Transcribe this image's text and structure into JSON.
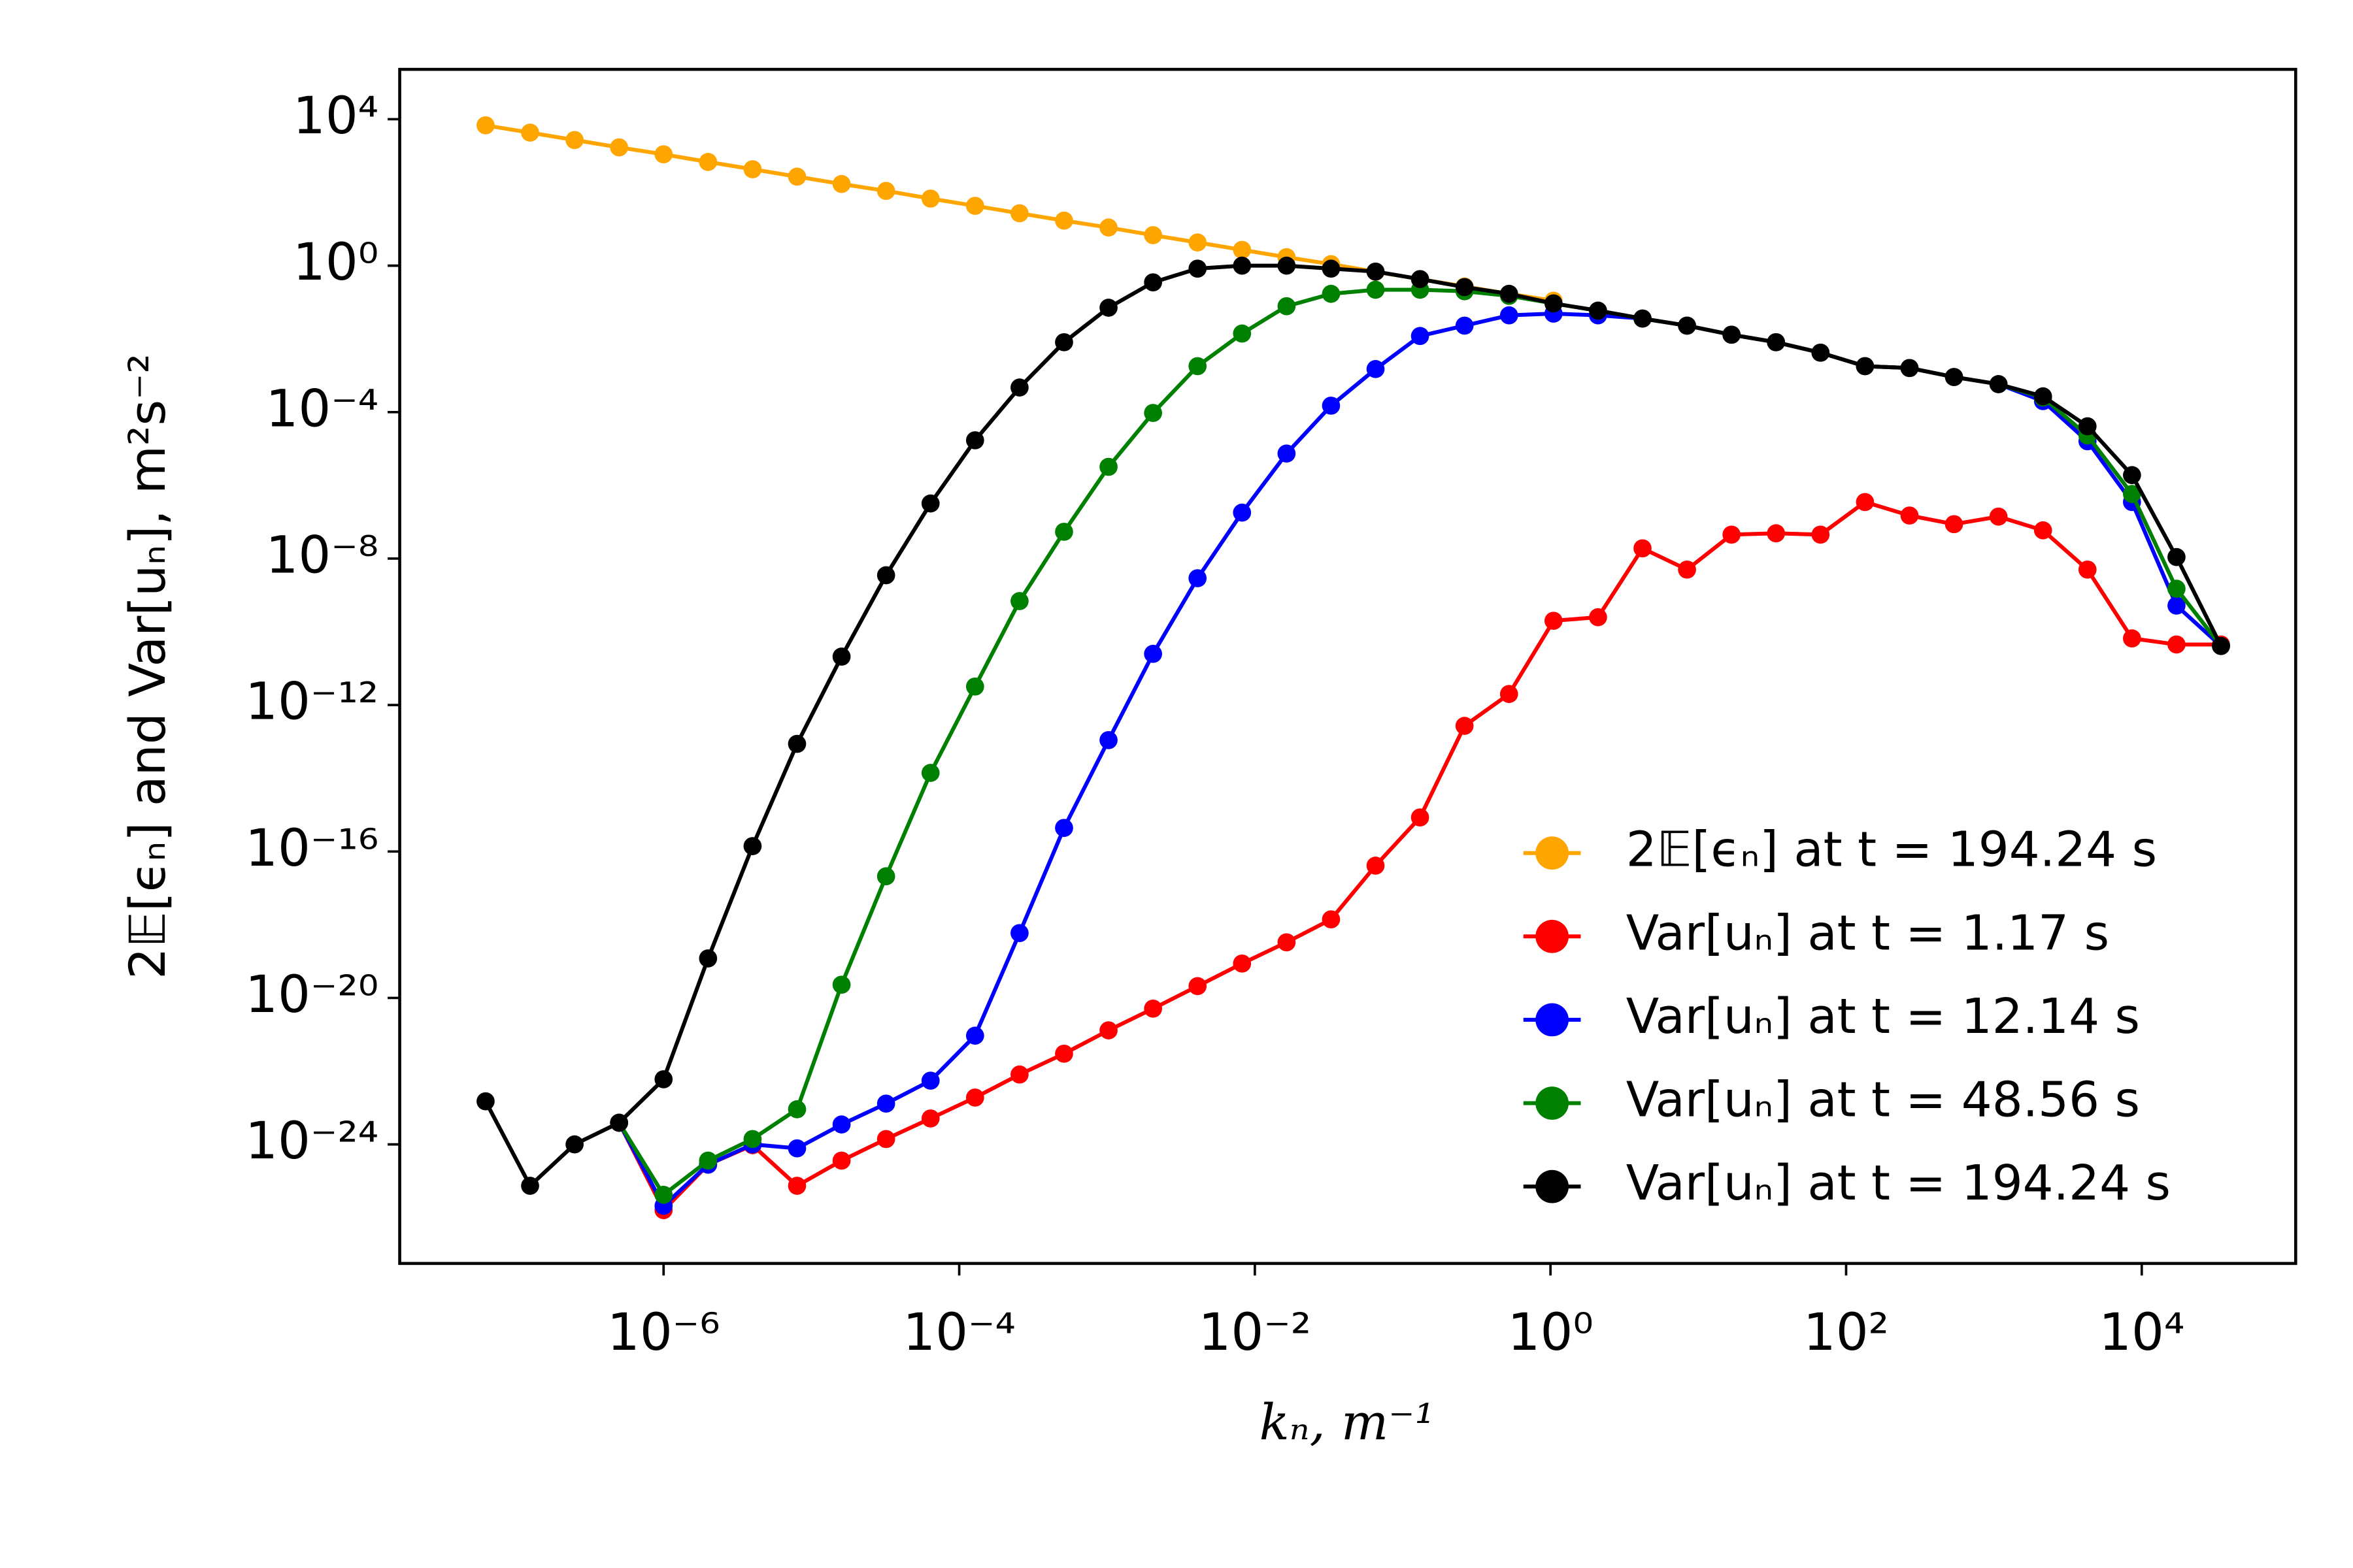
{
  "chart_data": {
    "type": "line",
    "x_label": "kₙ, m⁻¹",
    "y_label": "2𝔼[ϵₙ] and Var[uₙ], m²s⁻²",
    "xscale": "log",
    "yscale": "log",
    "xlim": [
      1.64e-08,
      110000
    ],
    "ylim": [
      5.6e-28,
      230000
    ],
    "xticks": [
      {
        "value": 1e-06,
        "label": "10⁻⁶"
      },
      {
        "value": 0.0001,
        "label": "10⁻⁴"
      },
      {
        "value": 0.01,
        "label": "10⁻²"
      },
      {
        "value": 1,
        "label": "10⁰"
      },
      {
        "value": 100,
        "label": "10²"
      },
      {
        "value": 10000,
        "label": "10⁴"
      }
    ],
    "yticks": [
      {
        "value": 10000,
        "label": "10⁴"
      },
      {
        "value": 1,
        "label": "10⁰"
      },
      {
        "value": 0.0001,
        "label": "10⁻⁴"
      },
      {
        "value": 1e-08,
        "label": "10⁻⁸"
      },
      {
        "value": 1e-12,
        "label": "10⁻¹²"
      },
      {
        "value": 1e-16,
        "label": "10⁻¹⁶"
      },
      {
        "value": 1e-20,
        "label": "10⁻²⁰"
      },
      {
        "value": 1e-24,
        "label": "10⁻²⁴"
      }
    ],
    "grid": false,
    "legend": "lower right",
    "x": [
      6.25e-08,
      1.25e-07,
      2.5e-07,
      5e-07,
      1e-06,
      2e-06,
      4e-06,
      8e-06,
      1.6e-05,
      3.2e-05,
      6.4e-05,
      0.000128,
      0.000256,
      0.000512,
      0.001024,
      0.002048,
      0.004096,
      0.008192,
      0.016384,
      0.032768,
      0.065536,
      0.131072,
      0.262144,
      0.524288,
      1.048576,
      2.097152,
      4.194304,
      8.388608,
      16.777216,
      33.554432,
      67.108864,
      134.217728,
      268.435456,
      536.870912,
      1073.741824,
      2147.483648,
      4294.967296,
      8589.934592,
      17179.869184,
      34359.738368
    ],
    "series": [
      {
        "name": "2𝔼[ϵₙ] at t = 194.24 s",
        "color": "#ffa500",
        "values": [
          6800,
          4300,
          2700,
          1700,
          1100,
          680,
          430,
          270,
          170,
          110,
          68,
          43,
          27,
          17,
          11,
          6.8,
          4.3,
          2.7,
          1.7,
          1.1,
          0.68,
          0.43,
          0.27,
          0.17,
          0.11,
          null,
          null,
          null,
          null,
          null,
          null,
          null,
          null,
          null,
          null,
          null,
          null,
          null,
          null,
          null
        ]
      },
      {
        "name": "Var[uₙ] at t = 1.17 s",
        "color": "#ff0000",
        "values": [
          null,
          null,
          null,
          3.9e-24,
          1.6e-26,
          2.8e-25,
          9.5e-25,
          7.4e-26,
          3.6e-25,
          1.4e-24,
          5.1e-24,
          1.9e-23,
          8.1e-23,
          3e-22,
          1.3e-21,
          5.1e-21,
          2.1e-20,
          8.7e-20,
          3.3e-19,
          1.4e-18,
          4.1e-17,
          8.5e-16,
          2.7e-13,
          2e-12,
          2e-10,
          2.5e-10,
          1.9e-08,
          5e-09,
          4.5e-08,
          4.9e-08,
          4.5e-08,
          3.5e-07,
          1.5e-07,
          8.7e-08,
          1.4e-07,
          5.9e-08,
          5e-09,
          6.6e-11,
          4.5e-11,
          4.5e-11
        ]
      },
      {
        "name": "Var[uₙ] at t = 12.14 s",
        "color": "#0000ff",
        "values": [
          null,
          null,
          null,
          3.9e-24,
          2.1e-26,
          2.8e-25,
          1e-24,
          7.8e-25,
          3.5e-24,
          1.3e-23,
          5.5e-23,
          9.3e-22,
          5.9e-19,
          4.4e-16,
          1.1e-13,
          2.5e-11,
          2.9e-09,
          1.8e-07,
          7.4e-06,
          0.00015,
          0.0015,
          0.012,
          0.023,
          0.044,
          0.049,
          0.044,
          0.036,
          0.023,
          0.013,
          0.0081,
          0.0042,
          0.0018,
          0.0016,
          0.00091,
          0.00058,
          0.0002,
          1.6e-05,
          3.5e-07,
          5.2e-10,
          4.1e-11
        ]
      },
      {
        "name": "Var[uₙ] at t = 48.56 s",
        "color": "#008000",
        "values": [
          null,
          null,
          null,
          3.9e-24,
          4.2e-26,
          3.6e-25,
          1.4e-24,
          9.1e-24,
          2.3e-20,
          2.1e-17,
          1.4e-14,
          3.2e-12,
          6.9e-10,
          5.4e-08,
          3.2e-06,
          9.5e-05,
          0.0018,
          0.014,
          0.078,
          0.17,
          0.22,
          0.22,
          0.2,
          0.15,
          0.093,
          0.059,
          0.036,
          0.023,
          0.013,
          0.0081,
          0.0042,
          0.0018,
          0.0016,
          0.00091,
          0.00058,
          0.00025,
          2.3e-05,
          5.8e-07,
          1.5e-09,
          4.1e-11
        ]
      },
      {
        "name": "Var[uₙ] at t = 194.24 s",
        "color": "#000000",
        "values": [
          1.5e-23,
          7.4e-26,
          1e-24,
          3.9e-24,
          6e-23,
          1.2e-19,
          1.4e-16,
          8.7e-14,
          2.1e-11,
          3.5e-09,
          3.2e-07,
          1.7e-05,
          0.00047,
          0.0081,
          0.071,
          0.35,
          0.83,
          1,
          1,
          0.83,
          0.69,
          0.43,
          0.26,
          0.17,
          0.093,
          0.059,
          0.036,
          0.023,
          0.013,
          0.0081,
          0.0042,
          0.0018,
          0.0016,
          0.00091,
          0.00058,
          0.00027,
          4.1e-05,
          1.9e-06,
          1.1e-08,
          4.1e-11
        ]
      }
    ]
  }
}
